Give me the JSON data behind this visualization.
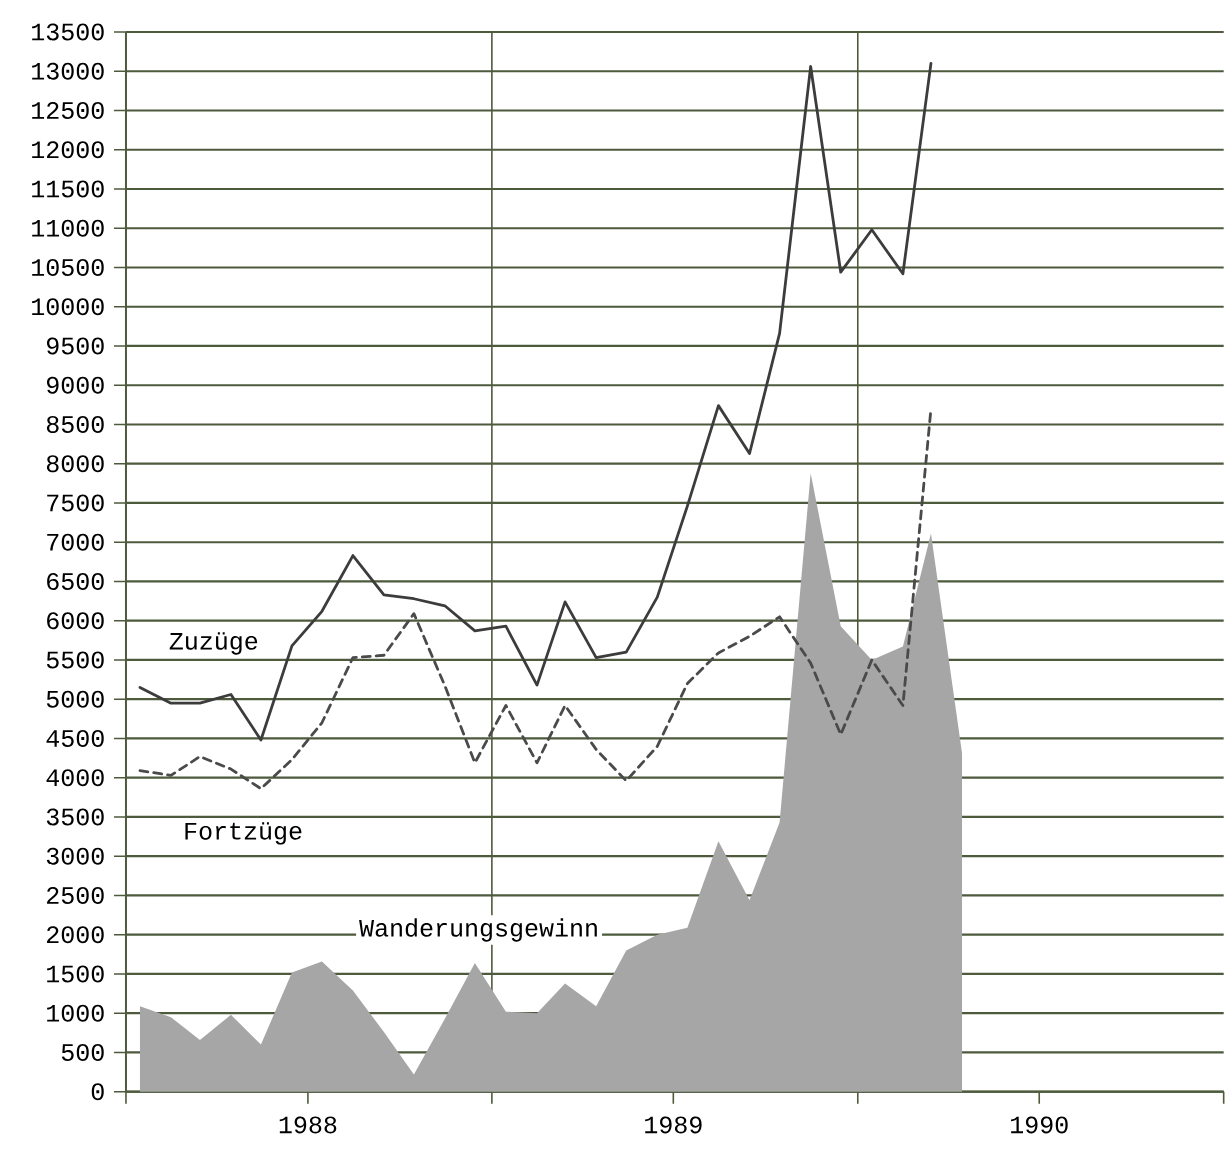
{
  "chart_data": {
    "type": "line",
    "x": [
      "1988-01-15",
      "1988-02-15",
      "1988-03-15",
      "1988-04-15",
      "1988-05-15",
      "1988-06-15",
      "1988-07-15",
      "1988-08-15",
      "1988-09-15",
      "1988-10-15",
      "1988-11-15",
      "1988-12-15",
      "1989-01-15",
      "1989-02-15",
      "1989-03-15",
      "1989-04-15",
      "1989-05-15",
      "1989-06-15",
      "1989-07-15",
      "1989-08-15",
      "1989-09-15",
      "1989-10-15",
      "1989-11-15",
      "1989-12-15",
      "1990-01-15",
      "1990-02-15",
      "1990-03-15",
      "1990-04-15"
    ],
    "xlim": [
      "1988-01-01",
      "1991-01-01"
    ],
    "xticks": [
      {
        "value": "1988-01-01",
        "label": null
      },
      {
        "value": "1988-07-01",
        "label": "1988"
      },
      {
        "value": "1989-01-01",
        "label": null
      },
      {
        "value": "1989-07-01",
        "label": "1989"
      },
      {
        "value": "1990-01-01",
        "label": null
      },
      {
        "value": "1990-07-01",
        "label": "1990"
      },
      {
        "value": "1991-01-01",
        "label": null
      }
    ],
    "ylim": [
      0,
      13500
    ],
    "yticks": [
      0,
      500,
      1000,
      1500,
      2000,
      2500,
      3000,
      3500,
      4000,
      4500,
      5000,
      5500,
      6000,
      6500,
      7000,
      7500,
      8000,
      8500,
      9000,
      9500,
      10000,
      10500,
      11000,
      11500,
      12000,
      12500,
      13000,
      13500
    ],
    "grid": "y",
    "ref_lines": [
      {
        "axis": "x",
        "value": "1989-01-01",
        "color": "#4d5a3c"
      },
      {
        "axis": "x",
        "value": "1990-01-01",
        "color": "#4d5a3c"
      }
    ],
    "series": [
      {
        "name": "Zuzüge",
        "color": "#3c3c3c",
        "values": [
          5150,
          4950,
          4950,
          5060,
          4480,
          5680,
          6120,
          6830,
          6330,
          6280,
          6190,
          5870,
          5930,
          5180,
          6240,
          5530,
          5600,
          6300,
          7460,
          8740,
          8130,
          9660,
          13060,
          10440,
          10980,
          10420,
          13100,
          null
        ]
      },
      {
        "name": "Fortzüge",
        "color": "#4a4a4a",
        "line_style": "dashed",
        "values": [
          4090,
          4030,
          4270,
          4110,
          3860,
          4230,
          4700,
          5530,
          5560,
          6090,
          5170,
          4190,
          4920,
          4190,
          4920,
          4360,
          3960,
          4400,
          5200,
          5590,
          5800,
          6050,
          5460,
          4550,
          5500,
          4920,
          8700,
          null
        ]
      },
      {
        "name": "Wanderungsgewinn",
        "type": "area",
        "color": "#a6a6a6",
        "values": [
          1090,
          950,
          660,
          980,
          600,
          1520,
          1660,
          1290,
          760,
          220,
          930,
          1640,
          1020,
          1000,
          1380,
          1090,
          1800,
          2000,
          2090,
          3190,
          2440,
          3430,
          7880,
          5930,
          5500,
          5670,
          7110,
          4310
        ]
      }
    ]
  }
}
